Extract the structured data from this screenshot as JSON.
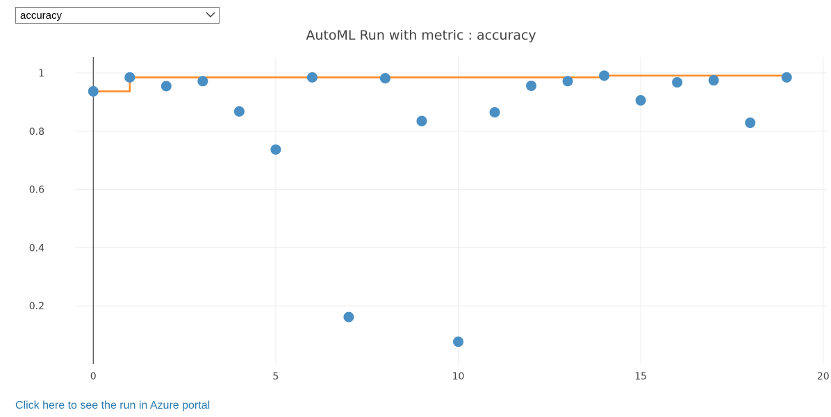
{
  "metric_select": {
    "value": "accuracy"
  },
  "footer": {
    "portal_link": "Click here to see the run in Azure portal"
  },
  "colors": {
    "points": "#4a8fc4",
    "best_line": "#ff8c28",
    "grid": "#ececec"
  },
  "icons": {
    "dropdown": "chevron-down-icon"
  },
  "chart_data": {
    "type": "scatter",
    "title": "AutoML Run with metric : accuracy",
    "xlabel": "",
    "ylabel": "",
    "xlim": [
      -0.5,
      20.1
    ],
    "ylim": [
      0.0,
      1.055
    ],
    "x_ticks": [
      0,
      5,
      10,
      15,
      20
    ],
    "x_tick_labels": [
      "0",
      "5",
      "10",
      "15",
      "20"
    ],
    "y_ticks": [
      0.2,
      0.4,
      0.6,
      0.8,
      1.0
    ],
    "y_tick_labels": [
      "0.2",
      "0.4",
      "0.6",
      "0.8",
      "1"
    ],
    "grid": true,
    "legend": "none",
    "series": [
      {
        "type": "scatter",
        "x": [
          0,
          1,
          2,
          3,
          4,
          5,
          6,
          7,
          8,
          9,
          10,
          11,
          12,
          13,
          14,
          15,
          16,
          17,
          18,
          19
        ],
        "y": [
          0.937,
          0.985,
          0.955,
          0.972,
          0.868,
          0.737,
          0.985,
          0.162,
          0.982,
          0.835,
          0.077,
          0.865,
          0.956,
          0.972,
          0.991,
          0.906,
          0.968,
          0.975,
          0.829,
          0.985
        ]
      },
      {
        "type": "step",
        "x": [
          0,
          1,
          2,
          3,
          4,
          5,
          6,
          7,
          8,
          9,
          10,
          11,
          12,
          13,
          14,
          15,
          16,
          17,
          18,
          19
        ],
        "y": [
          0.937,
          0.985,
          0.985,
          0.985,
          0.985,
          0.985,
          0.985,
          0.985,
          0.985,
          0.985,
          0.985,
          0.985,
          0.985,
          0.985,
          0.991,
          0.991,
          0.991,
          0.991,
          0.991,
          0.991
        ]
      }
    ]
  }
}
